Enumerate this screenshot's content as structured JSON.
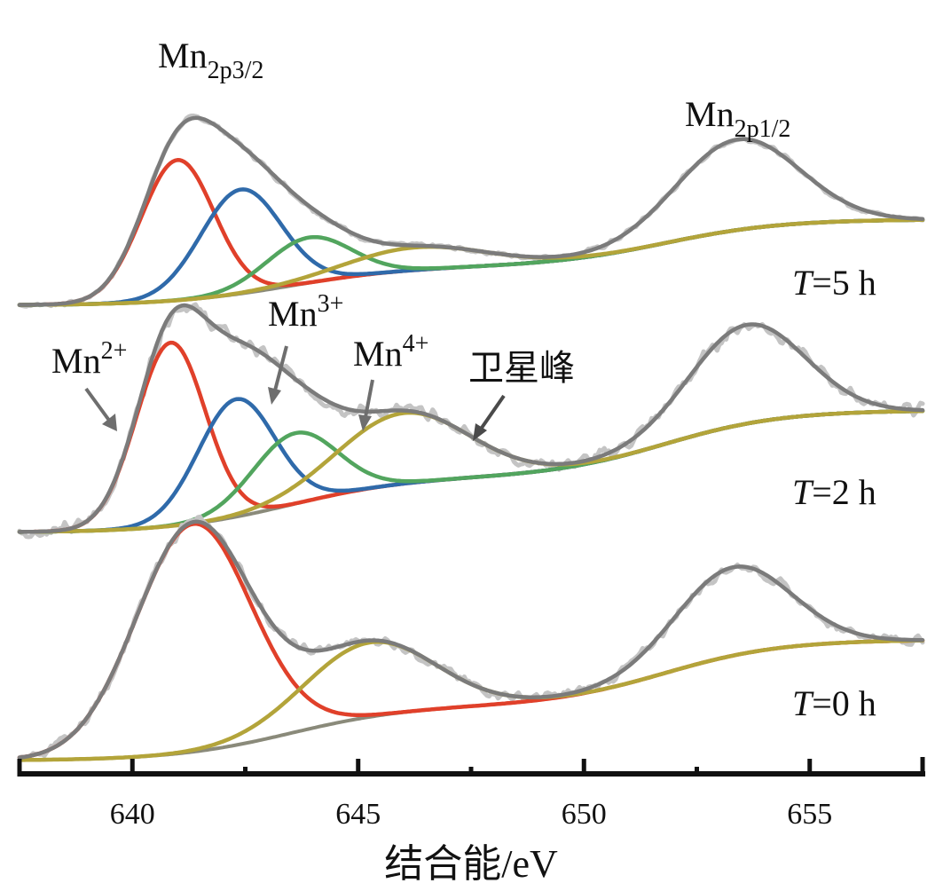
{
  "chart_data": {
    "type": "line",
    "title": "",
    "xlabel": "结合能/eV",
    "ylabel": "",
    "xlim": [
      637.5,
      657.5
    ],
    "xticks": [
      640,
      645,
      650,
      655
    ],
    "xtick_labels": [
      "640",
      "645",
      "650",
      "655"
    ],
    "minor_xticks": [
      642.5,
      647.5,
      652.5
    ],
    "grid": false,
    "y_axis_shown": false,
    "colors": {
      "mn2": "#e0402a",
      "mn3": "#2f6aaa",
      "mn4": "#52a55e",
      "satellite": "#b3a43a",
      "envelope": "#7b7b7b",
      "raw": "#c4c4c4",
      "background": "#8a8a7a",
      "lower_edge": "#8c6f66",
      "arrow": "#6e6e6e",
      "axis": "#111111"
    },
    "peak_labels": {
      "mn2p32": {
        "main": "Mn",
        "sub": "2p3/2"
      },
      "mn2p12": {
        "main": "Mn",
        "sub": "2p1/2"
      }
    },
    "species_labels": [
      {
        "id": "mn2",
        "main": "Mn",
        "sup": "2+"
      },
      {
        "id": "mn3",
        "main": "Mn",
        "sup": "3+"
      },
      {
        "id": "mn4",
        "main": "Mn",
        "sup": "4+"
      },
      {
        "id": "satellite",
        "text": "卫星峰"
      }
    ],
    "panels": [
      {
        "id": "t5",
        "label_italic": "T",
        "label_rest": "=5 h",
        "components": [
          {
            "name": "Mn2+",
            "color_key": "mn2",
            "center": 641.0,
            "fwhm": 1.9,
            "height": 0.62
          },
          {
            "name": "Mn3+",
            "color_key": "mn3",
            "center": 642.4,
            "fwhm": 2.1,
            "height": 0.46
          },
          {
            "name": "Mn4+",
            "color_key": "mn4",
            "center": 643.9,
            "fwhm": 2.2,
            "height": 0.2
          },
          {
            "name": "satellite",
            "color_key": "satellite",
            "center": 646.3,
            "fwhm": 3.6,
            "height": 0.1
          }
        ],
        "p12": {
          "center": 653.4,
          "fwhm": 3.2,
          "height": 0.4
        },
        "background_low": 0.0,
        "background_high": 0.38,
        "noise": 0.015
      },
      {
        "id": "t2",
        "label_italic": "T",
        "label_rest": "=2 h",
        "components": [
          {
            "name": "Mn2+",
            "color_key": "mn2",
            "center": 640.85,
            "fwhm": 1.8,
            "height": 0.78
          },
          {
            "name": "Mn3+",
            "color_key": "mn3",
            "center": 642.3,
            "fwhm": 2.0,
            "height": 0.5
          },
          {
            "name": "Mn4+",
            "color_key": "mn4",
            "center": 643.6,
            "fwhm": 2.2,
            "height": 0.3
          },
          {
            "name": "satellite",
            "color_key": "satellite",
            "center": 646.0,
            "fwhm": 3.4,
            "height": 0.3
          }
        ],
        "p12": {
          "center": 653.6,
          "fwhm": 3.0,
          "height": 0.42
        },
        "background_low": 0.0,
        "background_high": 0.52,
        "noise": 0.04
      },
      {
        "id": "t0",
        "label_italic": "T",
        "label_rest": "=0 h",
        "components": [
          {
            "name": "Mn2+",
            "color_key": "mn2",
            "center": 641.35,
            "fwhm": 3.0,
            "height": 0.98
          },
          {
            "name": "satellite",
            "color_key": "satellite",
            "center": 645.25,
            "fwhm": 3.4,
            "height": 0.32
          }
        ],
        "p12": {
          "center": 653.3,
          "fwhm": 3.0,
          "height": 0.38
        },
        "background_low": 0.0,
        "background_high": 0.52,
        "noise": 0.03
      }
    ]
  }
}
